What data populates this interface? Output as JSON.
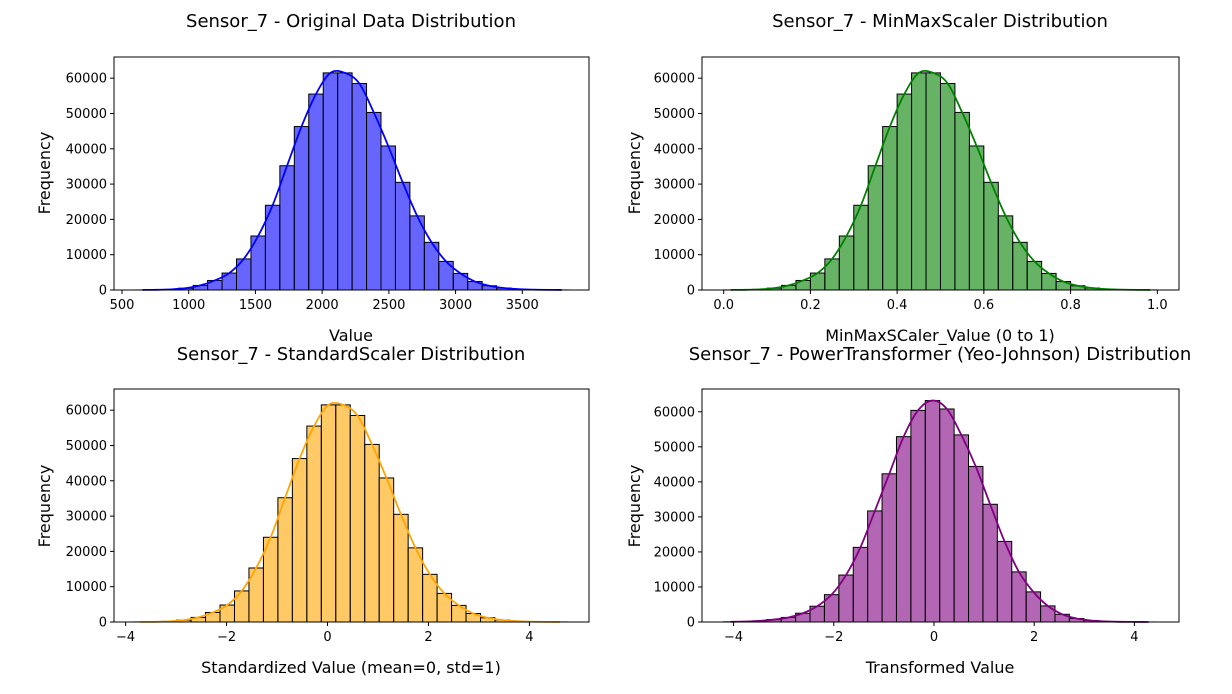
{
  "chart_data": [
    {
      "type": "bar",
      "title": "Sensor_7 - Original Data Distribution",
      "xlabel": "Value",
      "ylabel": "Frequency",
      "xlim": [
        440,
        4000
      ],
      "ylim": [
        0,
        66000
      ],
      "xticks": [
        500,
        1000,
        1500,
        2000,
        2500,
        3000,
        3500
      ],
      "xtick_labels": [
        "500",
        "1000",
        "1500",
        "2000",
        "2500",
        "3000",
        "3500"
      ],
      "yticks": [
        0,
        10000,
        20000,
        30000,
        40000,
        50000,
        60000
      ],
      "ytick_labels": [
        "0",
        "10000",
        "20000",
        "30000",
        "40000",
        "50000",
        "60000"
      ],
      "bin_start": 600,
      "bin_width": 108.3,
      "values": [
        20,
        60,
        180,
        520,
        1300,
        2700,
        4800,
        8800,
        15300,
        24000,
        35200,
        46300,
        55500,
        61500,
        61500,
        58500,
        50300,
        40800,
        30500,
        21000,
        13500,
        8100,
        4700,
        2400,
        1200,
        560,
        240,
        100,
        40,
        20
      ],
      "color": "#0000ff",
      "bar_opacity": 0.6,
      "kde_color": "#0000ff",
      "kde": true
    },
    {
      "type": "bar",
      "title": "Sensor_7 - MinMaxScaler Distribution",
      "xlabel": "MinMaxSCaler_Value (0 to 1)",
      "ylabel": "Frequency",
      "xlim": [
        -0.05,
        1.05
      ],
      "ylim": [
        0,
        66000
      ],
      "xticks": [
        0,
        0.2,
        0.4,
        0.6,
        0.8,
        1.0
      ],
      "xtick_labels": [
        "0.0",
        "0.2",
        "0.4",
        "0.6",
        "0.8",
        "1.0"
      ],
      "yticks": [
        0,
        10000,
        20000,
        30000,
        40000,
        50000,
        60000
      ],
      "ytick_labels": [
        "0",
        "10000",
        "20000",
        "30000",
        "40000",
        "50000",
        "60000"
      ],
      "bin_start": 0,
      "bin_width": 0.03333,
      "values": [
        20,
        60,
        180,
        520,
        1300,
        2700,
        4800,
        8800,
        15300,
        24000,
        35200,
        46300,
        55500,
        61500,
        61500,
        58500,
        50300,
        40800,
        30500,
        21000,
        13500,
        8100,
        4700,
        2400,
        1200,
        560,
        240,
        100,
        40,
        20
      ],
      "color": "#008000",
      "bar_opacity": 0.6,
      "kde_color": "#008000",
      "kde": true
    },
    {
      "type": "bar",
      "title": "Sensor_7 - StandardScaler Distribution",
      "xlabel": "Standardized Value (mean=0, std=1)",
      "ylabel": "Frequency",
      "xlim": [
        -4.23,
        5.18
      ],
      "ylim": [
        0,
        66000
      ],
      "xticks": [
        -4,
        -2,
        0,
        2,
        4
      ],
      "xtick_labels": [
        "−4",
        "−2",
        "0",
        "2",
        "4"
      ],
      "yticks": [
        0,
        10000,
        20000,
        30000,
        40000,
        50000,
        60000
      ],
      "ytick_labels": [
        "0",
        "10000",
        "20000",
        "30000",
        "40000",
        "50000",
        "60000"
      ],
      "bin_start": -3.85,
      "bin_width": 0.2867,
      "values": [
        20,
        60,
        180,
        520,
        1300,
        2700,
        4800,
        8800,
        15300,
        24000,
        35200,
        46300,
        55500,
        61500,
        61500,
        58500,
        50300,
        40800,
        30500,
        21000,
        13500,
        8100,
        4700,
        2400,
        1200,
        560,
        240,
        100,
        40,
        20
      ],
      "color": "#ffa500",
      "bar_opacity": 0.6,
      "kde_color": "#ffa500",
      "kde": true
    },
    {
      "type": "bar",
      "title": "Sensor_7 - PowerTransformer (Yeo-Johnson) Distribution",
      "xlabel": "Transformed Value",
      "ylabel": "Frequency",
      "xlim": [
        -4.63,
        4.89
      ],
      "ylim": [
        0,
        66500
      ],
      "xticks": [
        -4,
        -2,
        0,
        2,
        4
      ],
      "xtick_labels": [
        "−4",
        "−2",
        "0",
        "2",
        "4"
      ],
      "yticks": [
        0,
        10000,
        20000,
        30000,
        40000,
        50000,
        60000
      ],
      "ytick_labels": [
        "0",
        "10000",
        "20000",
        "30000",
        "40000",
        "50000",
        "60000"
      ],
      "bin_start": -4.2,
      "bin_width": 0.2876,
      "values": [
        60,
        140,
        320,
        700,
        1300,
        2500,
        4500,
        7800,
        13400,
        21300,
        31700,
        42300,
        52900,
        60400,
        63200,
        60800,
        53400,
        44400,
        33600,
        23000,
        14300,
        8600,
        4600,
        2200,
        1000,
        420,
        170,
        60,
        25,
        10
      ],
      "color": "#800080",
      "bar_opacity": 0.6,
      "kde_color": "#800080",
      "kde": true
    }
  ]
}
